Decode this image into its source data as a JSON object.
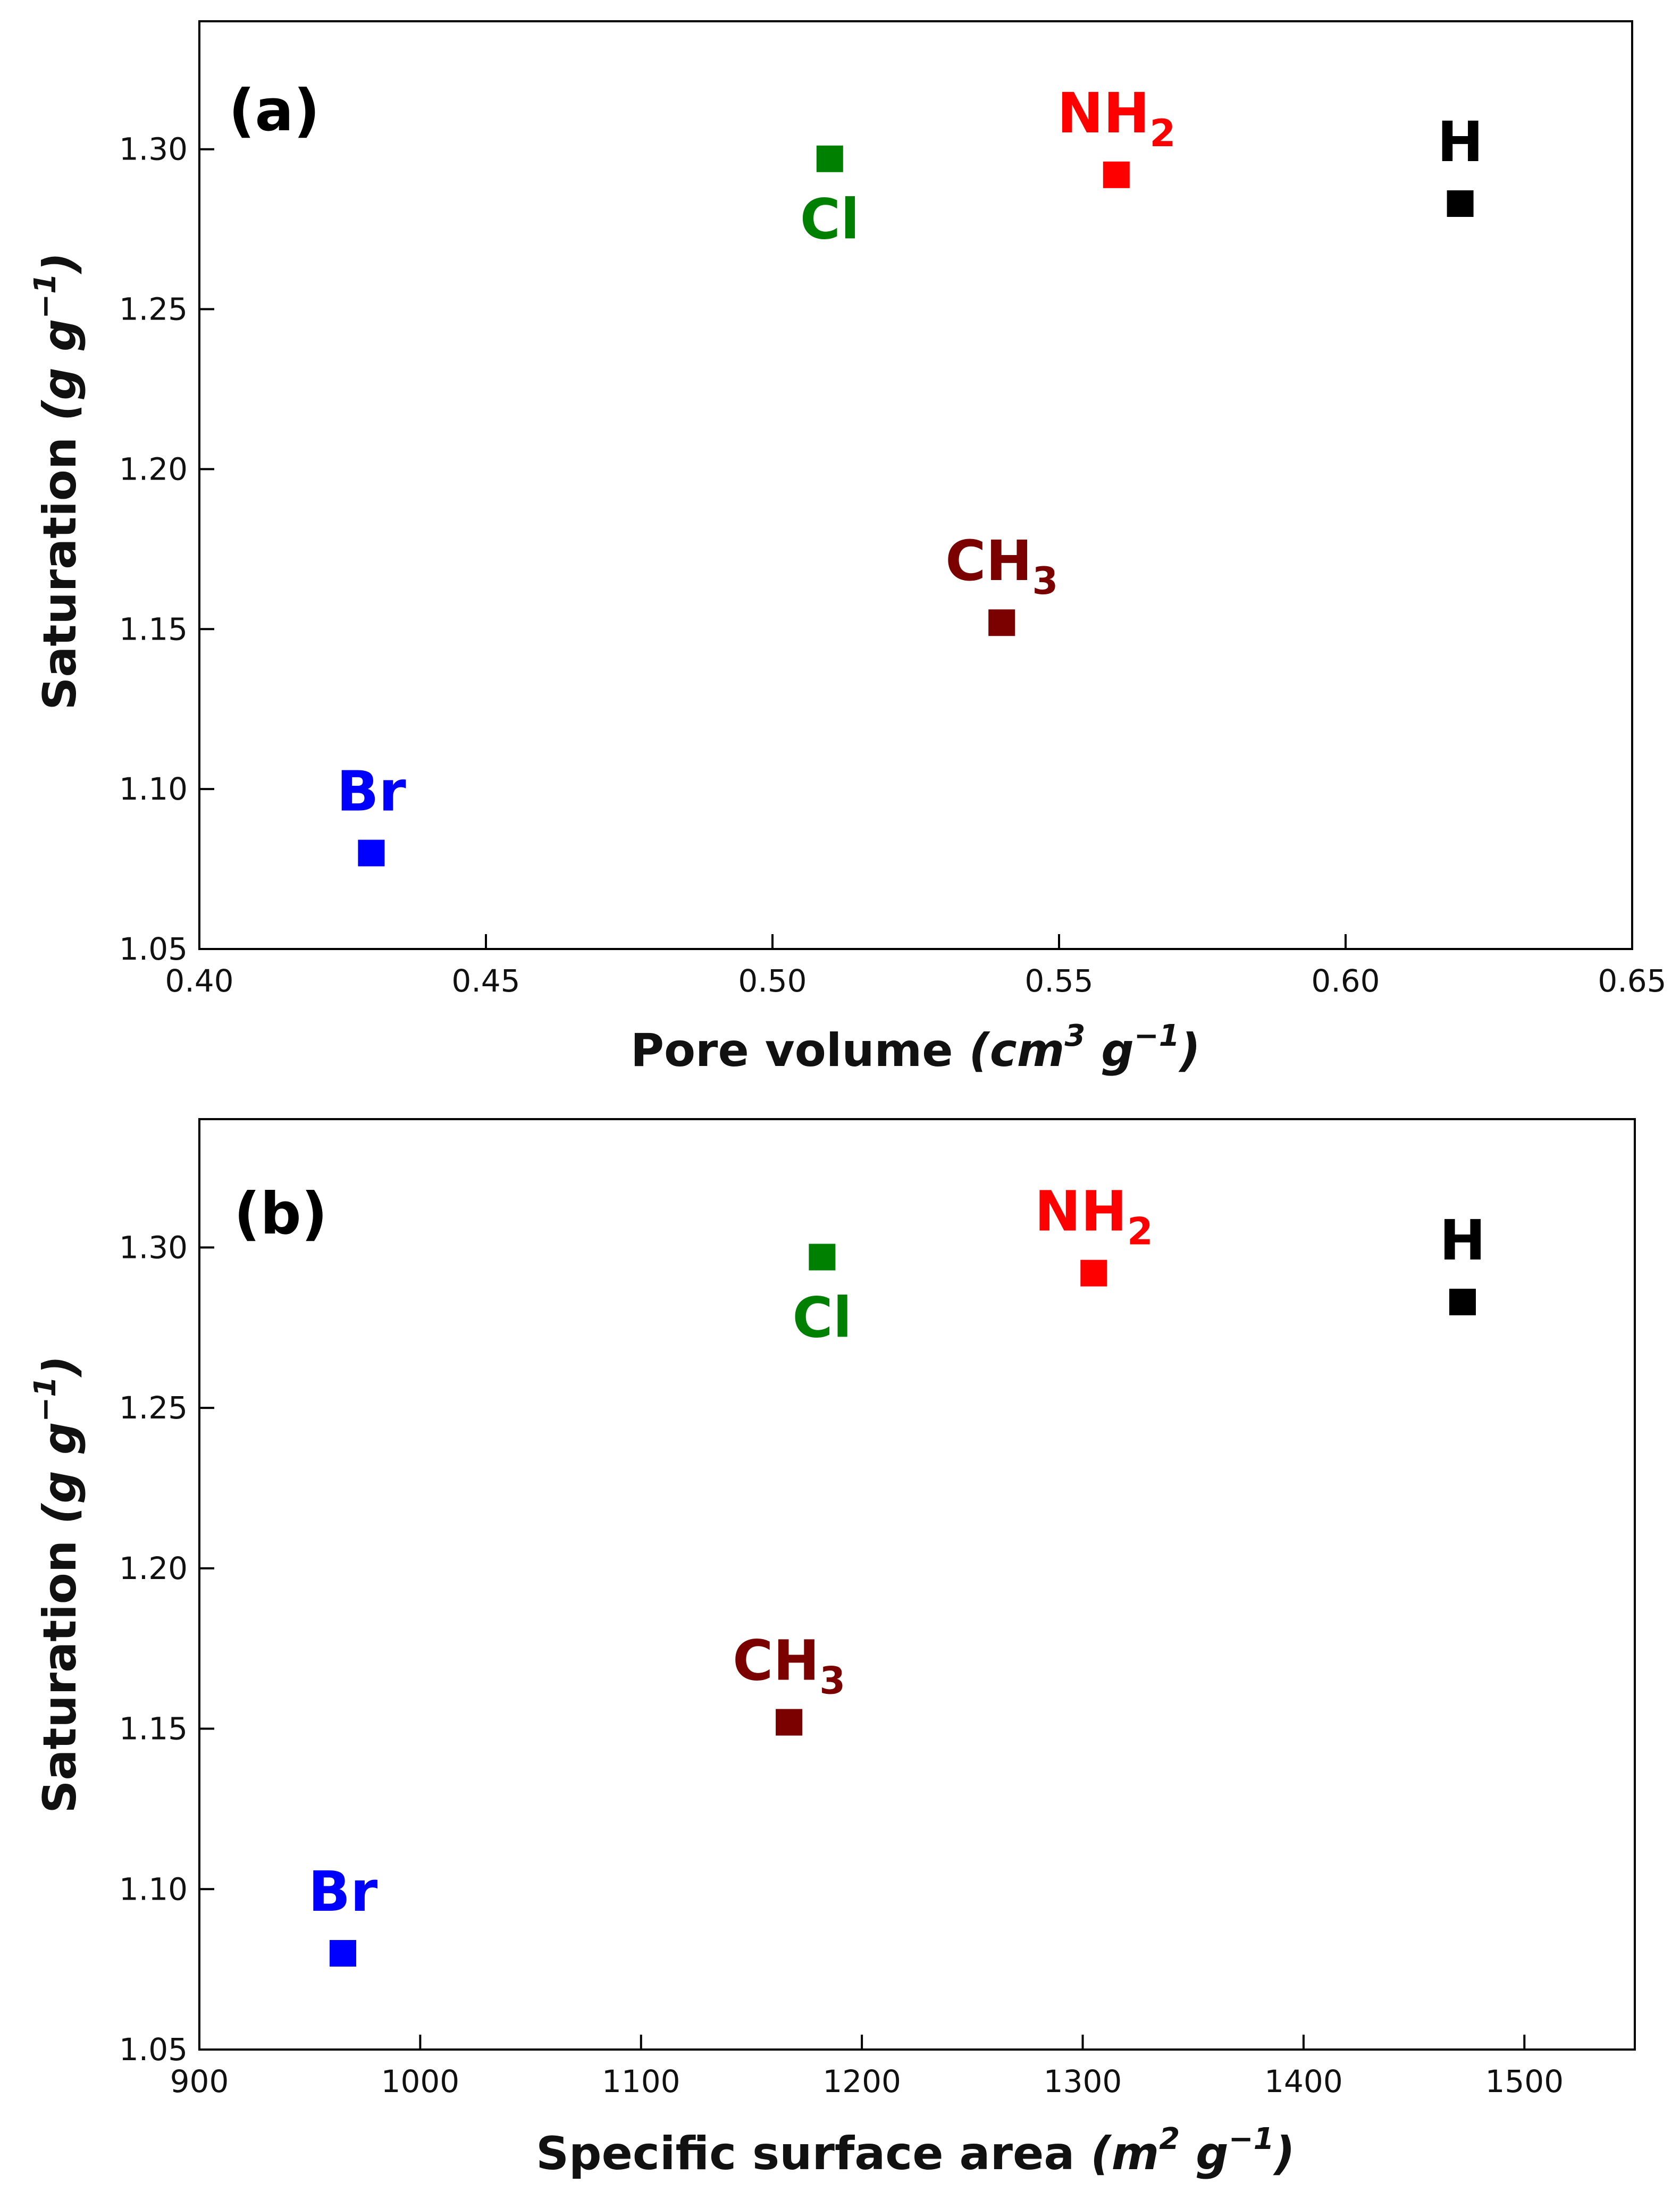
{
  "chart_data": [
    {
      "type": "scatter",
      "panel_label": "(a)",
      "xlabel": {
        "text": "Pore volume ",
        "unit_a": "cm",
        "unit_a_sup": "3",
        "unit_b": " g",
        "unit_b_sup": "−1",
        "paren_open": "(",
        "paren_close": ")"
      },
      "ylabel": {
        "text": "Saturation ",
        "unit_a": "g g",
        "unit_a_sup": "−1",
        "paren_open": "(",
        "paren_close": ")"
      },
      "xlim": [
        0.4,
        0.65
      ],
      "ylim": [
        1.05,
        1.34
      ],
      "xticks": [
        {
          "value": 0.4,
          "label": "0.40"
        },
        {
          "value": 0.45,
          "label": "0.45"
        },
        {
          "value": 0.5,
          "label": "0.50"
        },
        {
          "value": 0.55,
          "label": "0.55"
        },
        {
          "value": 0.6,
          "label": "0.60"
        },
        {
          "value": 0.65,
          "label": "0.65"
        }
      ],
      "yticks": [
        {
          "value": 1.05,
          "label": "1.05"
        },
        {
          "value": 1.1,
          "label": "1.10"
        },
        {
          "value": 1.15,
          "label": "1.15"
        },
        {
          "value": 1.2,
          "label": "1.20"
        },
        {
          "value": 1.25,
          "label": "1.25"
        },
        {
          "value": 1.3,
          "label": "1.30"
        }
      ],
      "points": [
        {
          "name": "Br",
          "label": "Br",
          "sub": "",
          "x": 0.43,
          "y": 1.08,
          "color": "#0000FF",
          "label_pos": "above"
        },
        {
          "name": "Cl",
          "label": "Cl",
          "sub": "",
          "x": 0.51,
          "y": 1.297,
          "color": "#008000",
          "label_pos": "below"
        },
        {
          "name": "CH3",
          "label": "CH",
          "sub": "3",
          "x": 0.54,
          "y": 1.152,
          "color": "#7B0000",
          "label_pos": "above"
        },
        {
          "name": "NH2",
          "label": "NH",
          "sub": "2",
          "x": 0.56,
          "y": 1.292,
          "color": "#FF0000",
          "label_pos": "above"
        },
        {
          "name": "H",
          "label": "H",
          "sub": "",
          "x": 0.62,
          "y": 1.283,
          "color": "#000000",
          "label_pos": "above"
        }
      ]
    },
    {
      "type": "scatter",
      "panel_label": "(b)",
      "xlabel": {
        "text": "Specific surface area ",
        "unit_a": "m",
        "unit_a_sup": "2",
        "unit_b": " g",
        "unit_b_sup": "−1",
        "paren_open": "(",
        "paren_close": ")"
      },
      "ylabel": {
        "text": "Saturation ",
        "unit_a": "g g",
        "unit_a_sup": "−1",
        "paren_open": "(",
        "paren_close": ")"
      },
      "xlim": [
        900,
        1550
      ],
      "ylim": [
        1.05,
        1.34
      ],
      "xticks": [
        {
          "value": 900,
          "label": "900"
        },
        {
          "value": 1000,
          "label": "1000"
        },
        {
          "value": 1100,
          "label": "1100"
        },
        {
          "value": 1200,
          "label": "1200"
        },
        {
          "value": 1300,
          "label": "1300"
        },
        {
          "value": 1400,
          "label": "1400"
        },
        {
          "value": 1500,
          "label": "1500"
        }
      ],
      "yticks": [
        {
          "value": 1.05,
          "label": "1.05"
        },
        {
          "value": 1.1,
          "label": "1.10"
        },
        {
          "value": 1.15,
          "label": "1.15"
        },
        {
          "value": 1.2,
          "label": "1.20"
        },
        {
          "value": 1.25,
          "label": "1.25"
        },
        {
          "value": 1.3,
          "label": "1.30"
        }
      ],
      "points": [
        {
          "name": "Br",
          "label": "Br",
          "sub": "",
          "x": 965,
          "y": 1.08,
          "color": "#0000FF",
          "label_pos": "above"
        },
        {
          "name": "Cl",
          "label": "Cl",
          "sub": "",
          "x": 1182,
          "y": 1.297,
          "color": "#008000",
          "label_pos": "below"
        },
        {
          "name": "CH3",
          "label": "CH",
          "sub": "3",
          "x": 1167,
          "y": 1.152,
          "color": "#7B0000",
          "label_pos": "above"
        },
        {
          "name": "NH2",
          "label": "NH",
          "sub": "2",
          "x": 1305,
          "y": 1.292,
          "color": "#FF0000",
          "label_pos": "above"
        },
        {
          "name": "H",
          "label": "H",
          "sub": "",
          "x": 1472,
          "y": 1.283,
          "color": "#000000",
          "label_pos": "above"
        }
      ]
    }
  ]
}
